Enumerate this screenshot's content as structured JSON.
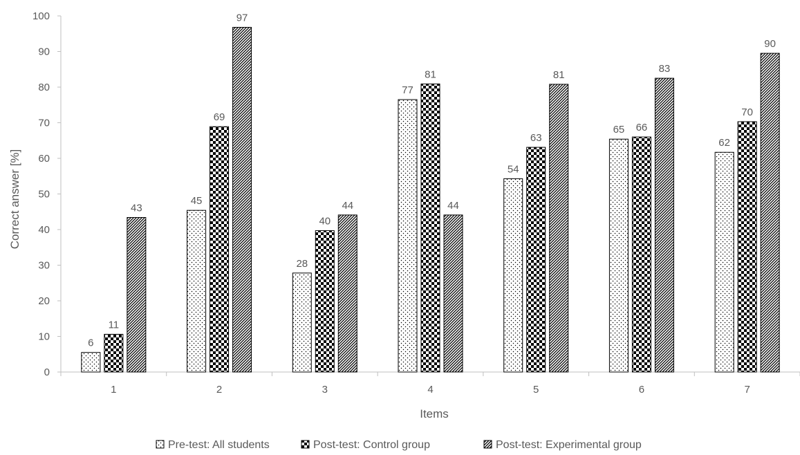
{
  "chart_data": {
    "type": "bar",
    "title": "",
    "xlabel": "Items",
    "ylabel": "Correct answer [%]",
    "ylim": [
      0,
      100
    ],
    "yticks": [
      0,
      10,
      20,
      30,
      40,
      50,
      60,
      70,
      80,
      90,
      100
    ],
    "categories": [
      "1",
      "2",
      "3",
      "4",
      "5",
      "6",
      "7"
    ],
    "grid": false,
    "legend_position": "bottom",
    "series": [
      {
        "name": "Pre-test: All students",
        "values": [
          5.5,
          45.4,
          27.8,
          76.5,
          54.3,
          65.4,
          61.7
        ],
        "labels": [
          "6",
          "45",
          "28",
          "77",
          "54",
          "65",
          "62"
        ],
        "pattern": "dots",
        "color": "#000000"
      },
      {
        "name": "Post-test: Control group",
        "values": [
          10.6,
          68.9,
          39.7,
          80.9,
          63.1,
          66.0,
          70.3
        ],
        "labels": [
          "11",
          "69",
          "40",
          "81",
          "63",
          "66",
          "70"
        ],
        "pattern": "checker",
        "color": "#000000"
      },
      {
        "name": "Post-test: Experimental group",
        "values": [
          43.4,
          96.8,
          44.1,
          44.1,
          80.8,
          82.5,
          89.5
        ],
        "labels": [
          "43",
          "97",
          "44",
          "44",
          "81",
          "83",
          "90"
        ],
        "pattern": "diagonal",
        "color": "#000000"
      }
    ]
  }
}
